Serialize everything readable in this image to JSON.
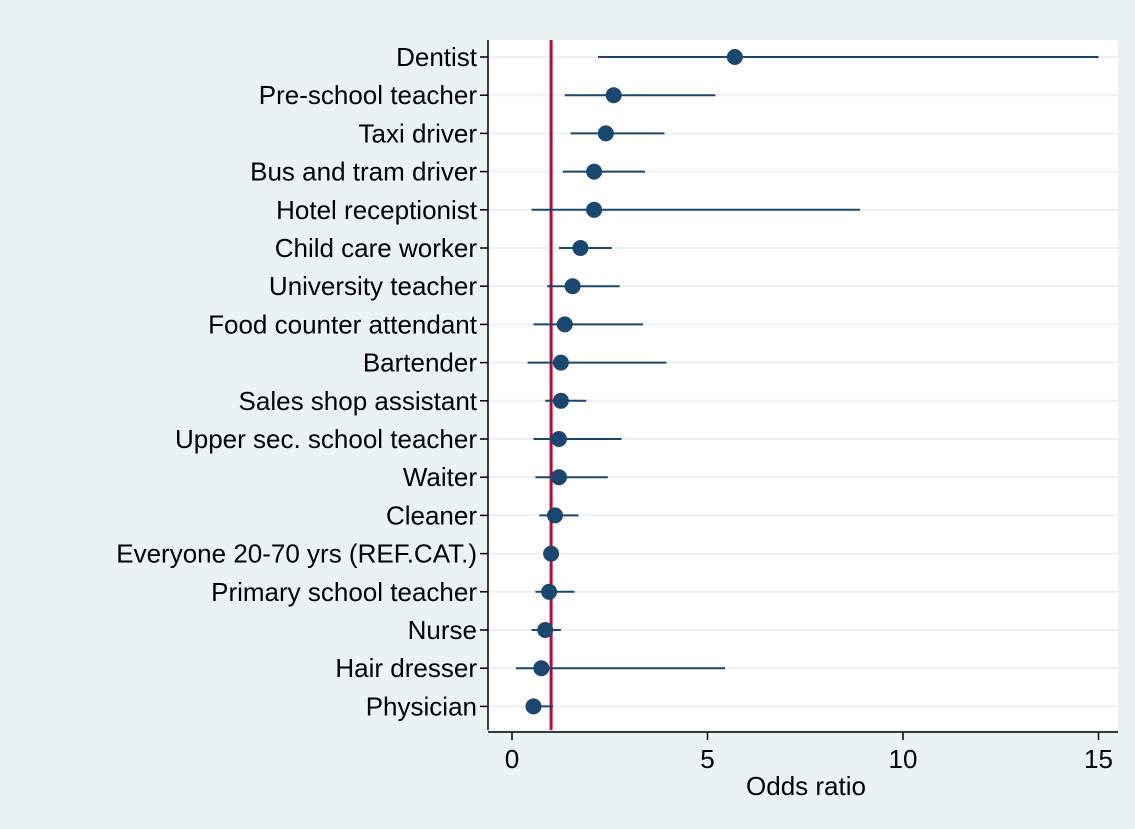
{
  "chart_data": {
    "type": "scatter",
    "subtype": "forest-plot",
    "xlabel": "Odds ratio",
    "xlim": [
      -0.3,
      15.5
    ],
    "xticks": [
      0,
      5,
      10,
      15
    ],
    "reference_line": 1,
    "grid": "horizontal",
    "categories": [
      "Dentist",
      "Pre-school teacher",
      "Taxi driver",
      "Bus and tram driver",
      "Hotel receptionist",
      "Child care worker",
      "University teacher",
      "Food counter attendant",
      "Bartender",
      "Sales shop assistant",
      "Upper sec. school teacher",
      "Waiter",
      "Cleaner",
      "Everyone 20-70 yrs (REF.CAT.)",
      "Primary school teacher",
      "Nurse",
      "Hair dresser",
      "Physician"
    ],
    "estimates": [
      5.7,
      2.6,
      2.4,
      2.1,
      2.1,
      1.75,
      1.55,
      1.35,
      1.25,
      1.25,
      1.2,
      1.2,
      1.1,
      1.0,
      0.95,
      0.85,
      0.75,
      0.55
    ],
    "ci_low": [
      2.2,
      1.35,
      1.5,
      1.3,
      0.5,
      1.2,
      0.9,
      0.55,
      0.4,
      0.85,
      0.55,
      0.6,
      0.7,
      1.0,
      0.6,
      0.5,
      0.1,
      0.35
    ],
    "ci_high": [
      15.0,
      5.2,
      3.9,
      3.4,
      8.9,
      2.55,
      2.75,
      3.35,
      3.95,
      1.9,
      2.8,
      2.45,
      1.7,
      1.0,
      1.6,
      1.25,
      5.45,
      1.05
    ]
  },
  "colors": {
    "background": "#eaf2f3",
    "plot_area": "#ffffff",
    "marker": "#1a476f",
    "ci_line": "#1a476f",
    "reference_line": "#c10534",
    "grid": "#eaf2f3",
    "axis": "#000000"
  }
}
